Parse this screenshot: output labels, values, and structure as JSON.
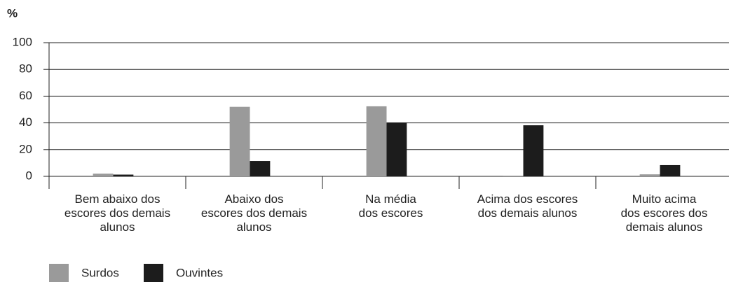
{
  "chart_data": {
    "type": "bar",
    "y_label": "%",
    "categories": [
      "Bem abaixo dos\nescores dos demais\nalunos",
      "Abaixo dos\nescores dos demais\nalunos",
      "Na média\ndos escores",
      "Acima dos escores\ndos demais alunos",
      "Muito acima\ndos escores dos\ndemais alunos"
    ],
    "series": [
      {
        "name": "Surdos",
        "color": "#9a9a9a",
        "values": [
          2,
          52,
          52.4,
          0.5,
          1.5
        ]
      },
      {
        "name": "Ouvintes",
        "color": "#1c1c1c",
        "values": [
          1.3,
          11.5,
          40.3,
          38.2,
          8.4
        ]
      }
    ],
    "ylim": [
      0,
      100
    ],
    "yticks": [
      0,
      20,
      40,
      60,
      80,
      100
    ],
    "grid": true
  }
}
